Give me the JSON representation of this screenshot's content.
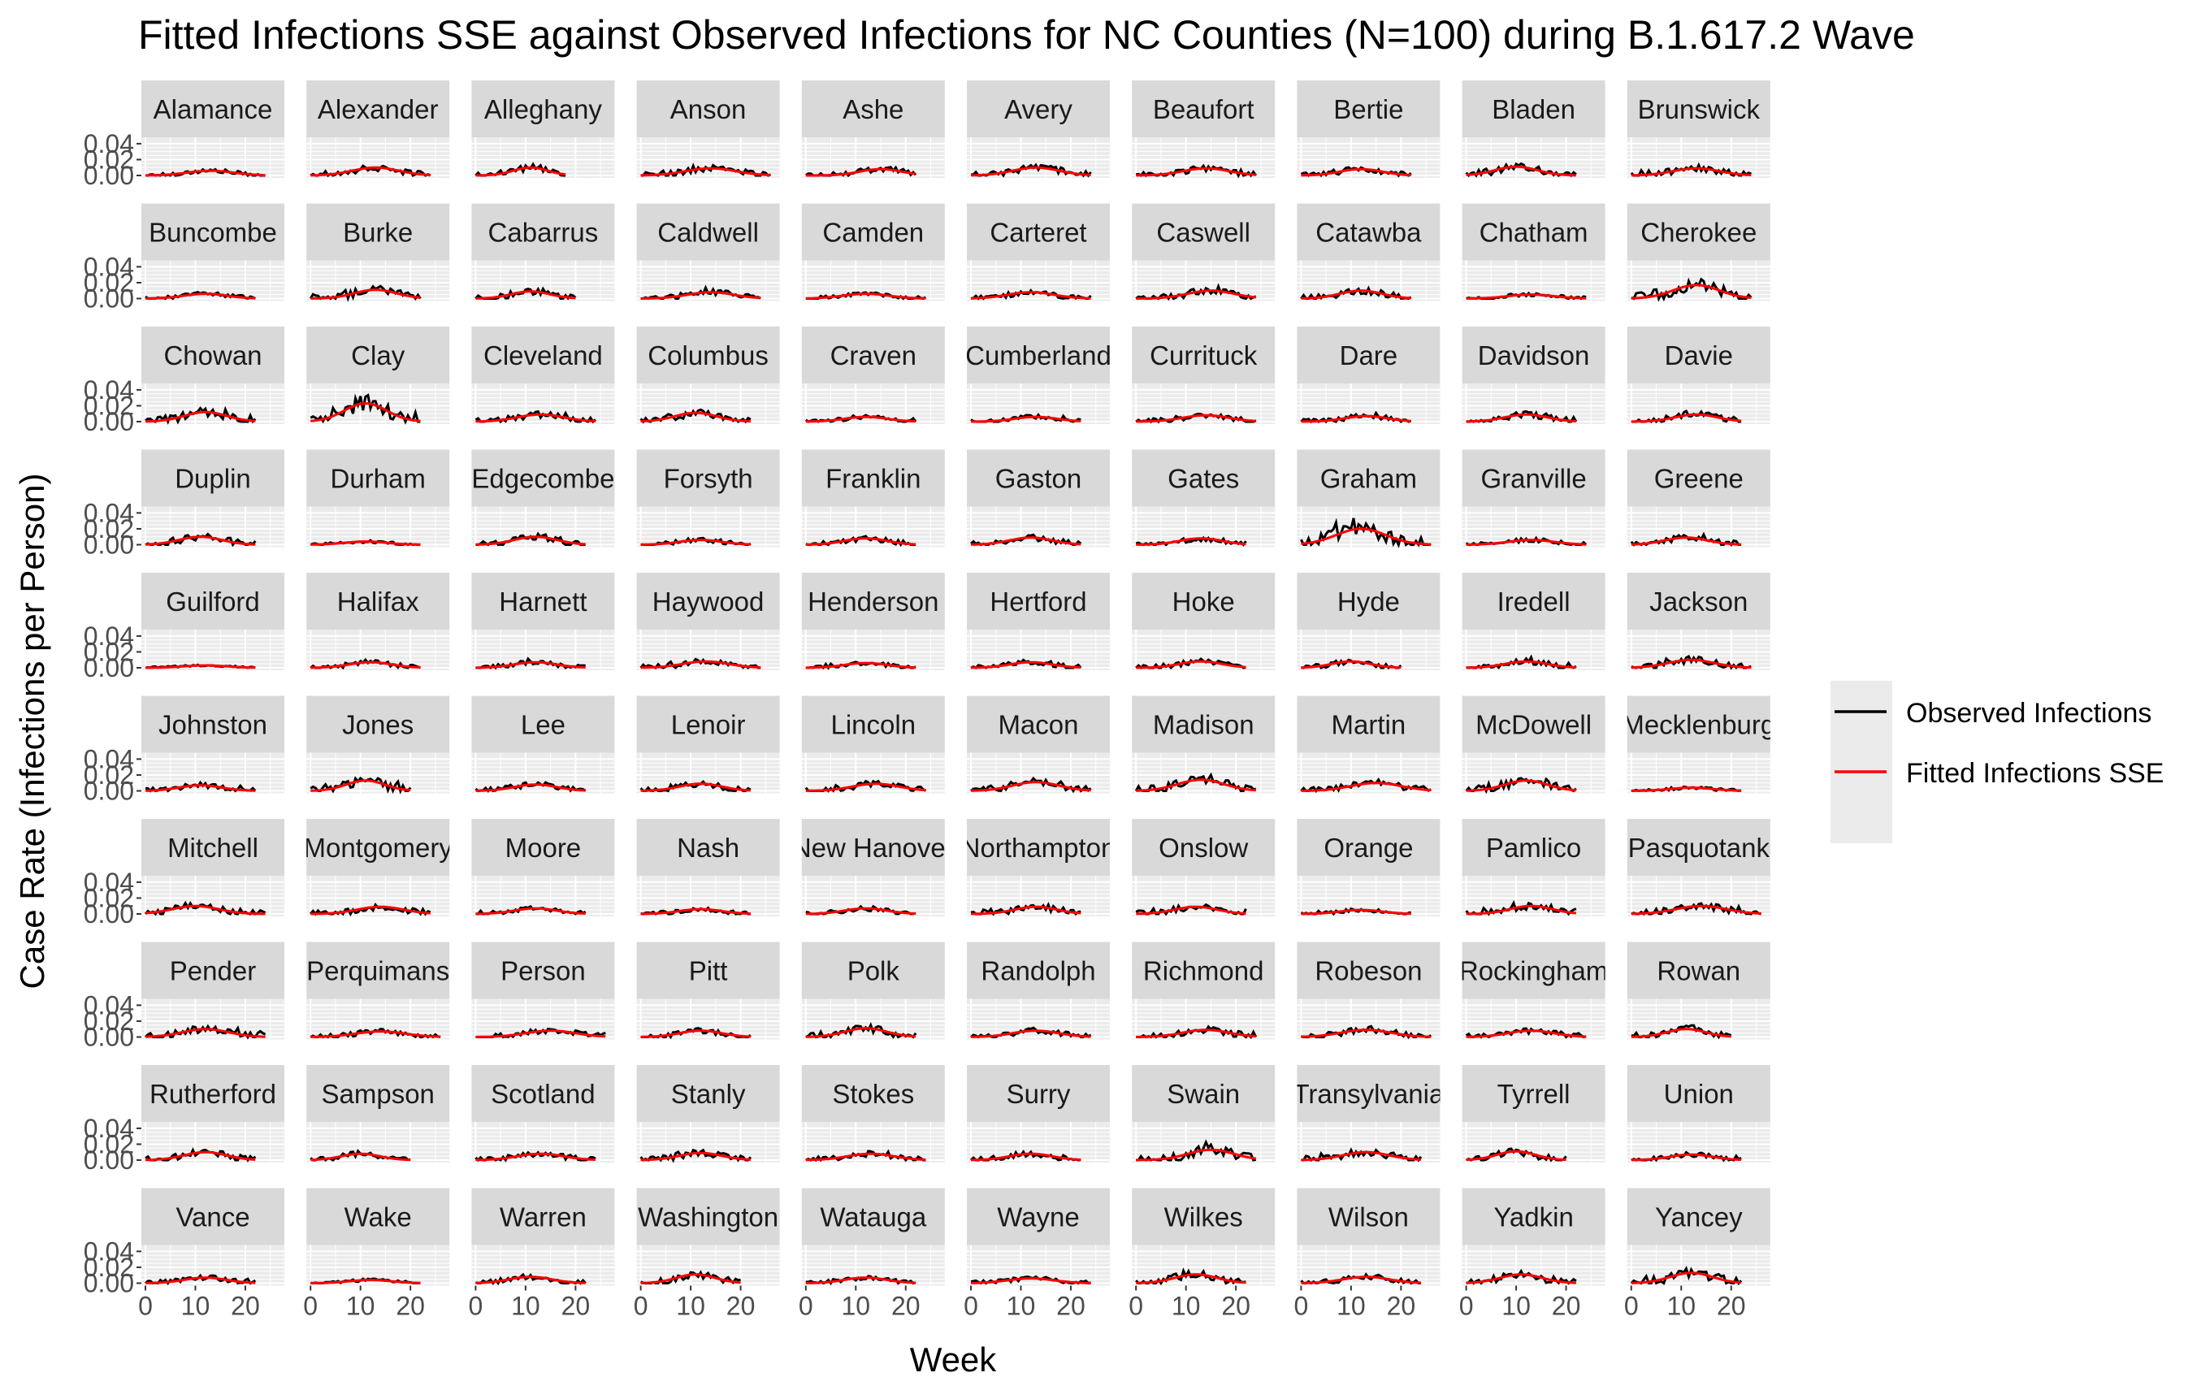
{
  "chart_data": {
    "type": "line",
    "layout": "facet-grid",
    "title": "Fitted Infections SSE against Observed Infections for NC Counties (N=100) during B.1.617.2 Wave",
    "xlabel": "Week",
    "ylabel": "Case Rate (Infections per Person)",
    "x_ticks": [
      0,
      10,
      20
    ],
    "y_ticks": [
      "0.00",
      "0.02",
      "0.04"
    ],
    "ylim": [
      0,
      0.045
    ],
    "grid": true,
    "legend_position": "right",
    "series": [
      {
        "name": "Observed Infections",
        "color": "#000000"
      },
      {
        "name": "Fitted Infections SSE",
        "color": "#ff0000"
      }
    ],
    "facets": [
      {
        "name": "Alamance",
        "weeks": 24,
        "peak_week": 13,
        "peak": 0.006
      },
      {
        "name": "Alexander",
        "weeks": 24,
        "peak_week": 13,
        "peak": 0.01
      },
      {
        "name": "Alleghany",
        "weeks": 18,
        "peak_week": 11,
        "peak": 0.01
      },
      {
        "name": "Anson",
        "weeks": 26,
        "peak_week": 14,
        "peak": 0.009
      },
      {
        "name": "Ashe",
        "weeks": 22,
        "peak_week": 15,
        "peak": 0.008
      },
      {
        "name": "Avery",
        "weeks": 24,
        "peak_week": 13,
        "peak": 0.01
      },
      {
        "name": "Beaufort",
        "weeks": 24,
        "peak_week": 14,
        "peak": 0.009
      },
      {
        "name": "Bertie",
        "weeks": 22,
        "peak_week": 12,
        "peak": 0.008
      },
      {
        "name": "Bladen",
        "weeks": 22,
        "peak_week": 10,
        "peak": 0.011
      },
      {
        "name": "Brunswick",
        "weeks": 24,
        "peak_week": 13,
        "peak": 0.009
      },
      {
        "name": "Buncombe",
        "weeks": 22,
        "peak_week": 12,
        "peak": 0.006
      },
      {
        "name": "Burke",
        "weeks": 22,
        "peak_week": 13,
        "peak": 0.011
      },
      {
        "name": "Cabarrus",
        "weeks": 20,
        "peak_week": 11,
        "peak": 0.009
      },
      {
        "name": "Caldwell",
        "weeks": 24,
        "peak_week": 14,
        "peak": 0.008
      },
      {
        "name": "Camden",
        "weeks": 24,
        "peak_week": 12,
        "peak": 0.006
      },
      {
        "name": "Carteret",
        "weeks": 24,
        "peak_week": 12,
        "peak": 0.008
      },
      {
        "name": "Caswell",
        "weeks": 24,
        "peak_week": 15,
        "peak": 0.01
      },
      {
        "name": "Catawba",
        "weeks": 22,
        "peak_week": 12,
        "peak": 0.01
      },
      {
        "name": "Chatham",
        "weeks": 24,
        "peak_week": 13,
        "peak": 0.005
      },
      {
        "name": "Cherokee",
        "weeks": 24,
        "peak_week": 13,
        "peak": 0.017
      },
      {
        "name": "Chowan",
        "weeks": 22,
        "peak_week": 12,
        "peak": 0.012
      },
      {
        "name": "Clay",
        "weeks": 22,
        "peak_week": 11,
        "peak": 0.023
      },
      {
        "name": "Cleveland",
        "weeks": 24,
        "peak_week": 13,
        "peak": 0.009
      },
      {
        "name": "Columbus",
        "weeks": 22,
        "peak_week": 11,
        "peak": 0.011
      },
      {
        "name": "Craven",
        "weeks": 22,
        "peak_week": 12,
        "peak": 0.006
      },
      {
        "name": "Cumberland",
        "weeks": 22,
        "peak_week": 13,
        "peak": 0.006
      },
      {
        "name": "Currituck",
        "weeks": 24,
        "peak_week": 14,
        "peak": 0.008
      },
      {
        "name": "Dare",
        "weeks": 22,
        "peak_week": 13,
        "peak": 0.007
      },
      {
        "name": "Davidson",
        "weeks": 22,
        "peak_week": 12,
        "peak": 0.009
      },
      {
        "name": "Davie",
        "weeks": 22,
        "peak_week": 13,
        "peak": 0.009
      },
      {
        "name": "Duplin",
        "weeks": 22,
        "peak_week": 11,
        "peak": 0.01
      },
      {
        "name": "Durham",
        "weeks": 22,
        "peak_week": 11,
        "peak": 0.004
      },
      {
        "name": "Edgecombe",
        "weeks": 22,
        "peak_week": 12,
        "peak": 0.01
      },
      {
        "name": "Forsyth",
        "weeks": 22,
        "peak_week": 12,
        "peak": 0.006
      },
      {
        "name": "Franklin",
        "weeks": 22,
        "peak_week": 12,
        "peak": 0.008
      },
      {
        "name": "Gaston",
        "weeks": 22,
        "peak_week": 12,
        "peak": 0.009
      },
      {
        "name": "Gates",
        "weeks": 22,
        "peak_week": 13,
        "peak": 0.008
      },
      {
        "name": "Graham",
        "weeks": 26,
        "peak_week": 12,
        "peak": 0.02
      },
      {
        "name": "Granville",
        "weeks": 24,
        "peak_week": 13,
        "peak": 0.006
      },
      {
        "name": "Greene",
        "weeks": 22,
        "peak_week": 11,
        "peak": 0.009
      },
      {
        "name": "Guilford",
        "weeks": 22,
        "peak_week": 12,
        "peak": 0.003
      },
      {
        "name": "Halifax",
        "weeks": 22,
        "peak_week": 12,
        "peak": 0.007
      },
      {
        "name": "Harnett",
        "weeks": 22,
        "peak_week": 12,
        "peak": 0.007
      },
      {
        "name": "Haywood",
        "weeks": 24,
        "peak_week": 13,
        "peak": 0.008
      },
      {
        "name": "Henderson",
        "weeks": 22,
        "peak_week": 12,
        "peak": 0.006
      },
      {
        "name": "Hertford",
        "weeks": 22,
        "peak_week": 12,
        "peak": 0.007
      },
      {
        "name": "Hoke",
        "weeks": 22,
        "peak_week": 13,
        "peak": 0.008
      },
      {
        "name": "Hyde",
        "weeks": 20,
        "peak_week": 10,
        "peak": 0.008
      },
      {
        "name": "Iredell",
        "weeks": 22,
        "peak_week": 12,
        "peak": 0.008
      },
      {
        "name": "Jackson",
        "weeks": 24,
        "peak_week": 12,
        "peak": 0.01
      },
      {
        "name": "Johnston",
        "weeks": 22,
        "peak_week": 11,
        "peak": 0.007
      },
      {
        "name": "Jones",
        "weeks": 20,
        "peak_week": 11,
        "peak": 0.013
      },
      {
        "name": "Lee",
        "weeks": 22,
        "peak_week": 12,
        "peak": 0.008
      },
      {
        "name": "Lenoir",
        "weeks": 22,
        "peak_week": 12,
        "peak": 0.009
      },
      {
        "name": "Lincoln",
        "weeks": 24,
        "peak_week": 14,
        "peak": 0.009
      },
      {
        "name": "Macon",
        "weeks": 24,
        "peak_week": 13,
        "peak": 0.011
      },
      {
        "name": "Madison",
        "weeks": 24,
        "peak_week": 13,
        "peak": 0.014
      },
      {
        "name": "Martin",
        "weeks": 26,
        "peak_week": 15,
        "peak": 0.01
      },
      {
        "name": "McDowell",
        "weeks": 22,
        "peak_week": 12,
        "peak": 0.013
      },
      {
        "name": "Mecklenburg",
        "weeks": 22,
        "peak_week": 12,
        "peak": 0.004
      },
      {
        "name": "Mitchell",
        "weeks": 24,
        "peak_week": 10,
        "peak": 0.01
      },
      {
        "name": "Montgomery",
        "weeks": 24,
        "peak_week": 14,
        "peak": 0.009
      },
      {
        "name": "Moore",
        "weeks": 22,
        "peak_week": 12,
        "peak": 0.007
      },
      {
        "name": "Nash",
        "weeks": 22,
        "peak_week": 12,
        "peak": 0.006
      },
      {
        "name": "New Hanover",
        "weeks": 22,
        "peak_week": 12,
        "peak": 0.007
      },
      {
        "name": "Northampton",
        "weeks": 22,
        "peak_week": 13,
        "peak": 0.009
      },
      {
        "name": "Onslow",
        "weeks": 22,
        "peak_week": 12,
        "peak": 0.009
      },
      {
        "name": "Orange",
        "weeks": 22,
        "peak_week": 12,
        "peak": 0.005
      },
      {
        "name": "Pamlico",
        "weeks": 22,
        "peak_week": 13,
        "peak": 0.01
      },
      {
        "name": "Pasquotank",
        "weeks": 26,
        "peak_week": 14,
        "peak": 0.01
      },
      {
        "name": "Pender",
        "weeks": 24,
        "peak_week": 12,
        "peak": 0.01
      },
      {
        "name": "Perquimans",
        "weeks": 26,
        "peak_week": 14,
        "peak": 0.007
      },
      {
        "name": "Person",
        "weeks": 26,
        "peak_week": 15,
        "peak": 0.008
      },
      {
        "name": "Pitt",
        "weeks": 22,
        "peak_week": 12,
        "peak": 0.008
      },
      {
        "name": "Polk",
        "weeks": 22,
        "peak_week": 12,
        "peak": 0.011
      },
      {
        "name": "Randolph",
        "weeks": 24,
        "peak_week": 13,
        "peak": 0.008
      },
      {
        "name": "Richmond",
        "weeks": 24,
        "peak_week": 14,
        "peak": 0.009
      },
      {
        "name": "Robeson",
        "weeks": 26,
        "peak_week": 13,
        "peak": 0.009
      },
      {
        "name": "Rockingham",
        "weeks": 24,
        "peak_week": 13,
        "peak": 0.008
      },
      {
        "name": "Rowan",
        "weeks": 20,
        "peak_week": 11,
        "peak": 0.01
      },
      {
        "name": "Rutherford",
        "weeks": 22,
        "peak_week": 12,
        "peak": 0.01
      },
      {
        "name": "Sampson",
        "weeks": 20,
        "peak_week": 10,
        "peak": 0.008
      },
      {
        "name": "Scotland",
        "weeks": 24,
        "peak_week": 13,
        "peak": 0.008
      },
      {
        "name": "Stanly",
        "weeks": 22,
        "peak_week": 12,
        "peak": 0.009
      },
      {
        "name": "Stokes",
        "weeks": 24,
        "peak_week": 13,
        "peak": 0.008
      },
      {
        "name": "Surry",
        "weeks": 22,
        "peak_week": 12,
        "peak": 0.008
      },
      {
        "name": "Swain",
        "weeks": 24,
        "peak_week": 15,
        "peak": 0.013
      },
      {
        "name": "Transylvania",
        "weeks": 24,
        "peak_week": 13,
        "peak": 0.01
      },
      {
        "name": "Tyrrell",
        "weeks": 20,
        "peak_week": 10,
        "peak": 0.011
      },
      {
        "name": "Union",
        "weeks": 22,
        "peak_week": 12,
        "peak": 0.007
      },
      {
        "name": "Vance",
        "weeks": 22,
        "peak_week": 12,
        "peak": 0.007
      },
      {
        "name": "Wake",
        "weeks": 22,
        "peak_week": 12,
        "peak": 0.004
      },
      {
        "name": "Warren",
        "weeks": 22,
        "peak_week": 11,
        "peak": 0.008
      },
      {
        "name": "Washington",
        "weeks": 20,
        "peak_week": 11,
        "peak": 0.011
      },
      {
        "name": "Watauga",
        "weeks": 22,
        "peak_week": 12,
        "peak": 0.007
      },
      {
        "name": "Wayne",
        "weeks": 24,
        "peak_week": 12,
        "peak": 0.006
      },
      {
        "name": "Wilkes",
        "weeks": 22,
        "peak_week": 12,
        "peak": 0.011
      },
      {
        "name": "Wilson",
        "weeks": 24,
        "peak_week": 13,
        "peak": 0.008
      },
      {
        "name": "Yadkin",
        "weeks": 22,
        "peak_week": 11,
        "peak": 0.011
      },
      {
        "name": "Yancey",
        "weeks": 22,
        "peak_week": 12,
        "peak": 0.013
      }
    ]
  }
}
